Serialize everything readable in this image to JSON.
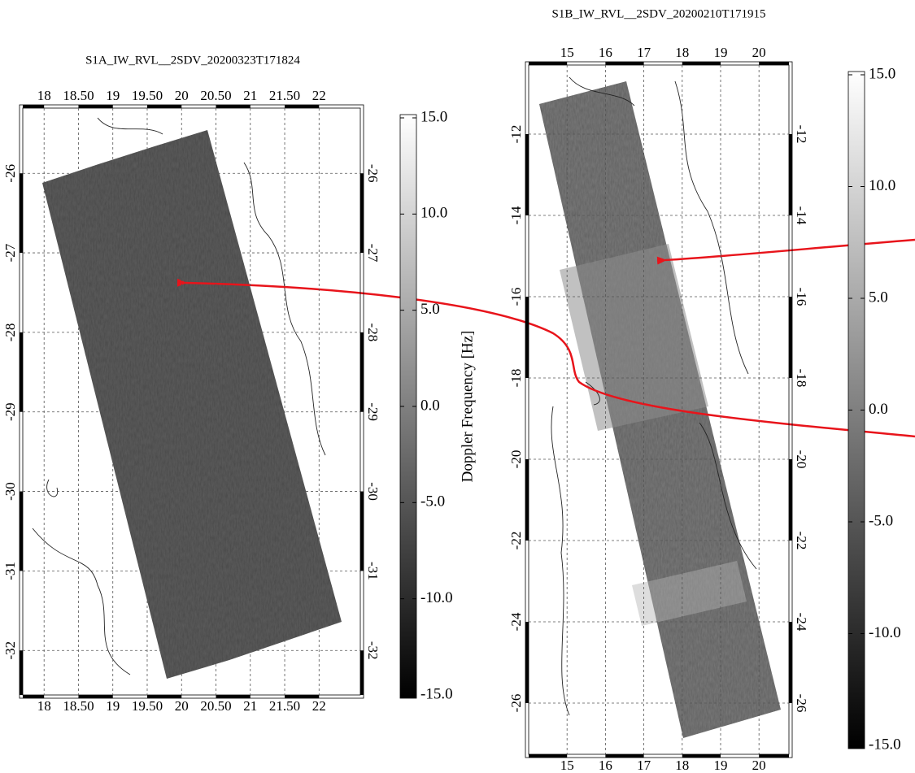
{
  "panels": [
    {
      "title": "S1A_IW_RVL__2SDV_20200323T171824",
      "xlim": [
        17.69,
        22.6
      ],
      "ylim": [
        -32.56,
        -25.18
      ],
      "xticks": [
        18,
        {
          "value": 18.5,
          "label": "18.50"
        },
        19,
        {
          "value": 19.5,
          "label": "19.50"
        },
        20,
        {
          "value": 20.5,
          "label": "20.50"
        },
        21,
        {
          "value": 21.5,
          "label": "21.50"
        },
        22
      ],
      "yticks": [
        -26,
        -27,
        -28,
        -29,
        -30,
        -31,
        -32
      ],
      "clim": [
        -15,
        15
      ],
      "cticks": [
        {
          "value": 15,
          "label": "15.0"
        },
        {
          "value": 10,
          "label": "10.0"
        },
        {
          "value": 5,
          "label": "5.0"
        },
        {
          "value": 0,
          "label": "0.0"
        },
        {
          "value": -5,
          "label": "-5.0"
        },
        {
          "value": -10,
          "label": "-10.0"
        },
        {
          "value": -15,
          "label": "-15.0"
        }
      ],
      "colorbar_label": "Doppler Frequency [Hz]"
    },
    {
      "title": "S1B_IW_RVL__2SDV_20200210T171915",
      "xlim": [
        14.0,
        20.78
      ],
      "ylim": [
        -27.26,
        -10.3
      ],
      "xticks": [
        15,
        16,
        17,
        18,
        19,
        20
      ],
      "yticks": [
        -12,
        -14,
        -16,
        -18,
        -20,
        -22,
        -24,
        -26
      ],
      "clim": [
        -15,
        15
      ],
      "cticks": [
        {
          "value": 15,
          "label": "15.0"
        },
        {
          "value": 10,
          "label": "10.0"
        },
        {
          "value": 5,
          "label": "5.0"
        },
        {
          "value": 0,
          "label": "0.0"
        },
        {
          "value": -5,
          "label": "-5.0"
        },
        {
          "value": -10,
          "label": "-10.0"
        },
        {
          "value": -15,
          "label": "-15.0"
        }
      ]
    }
  ]
}
